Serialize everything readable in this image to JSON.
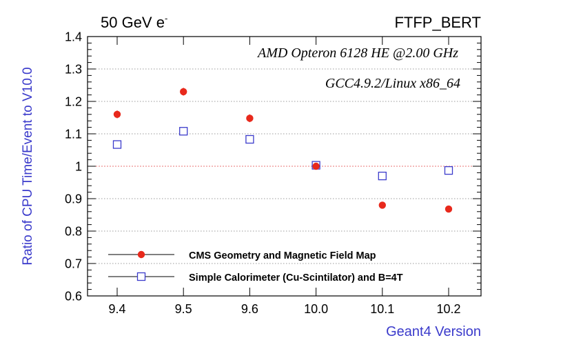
{
  "chart_data": {
    "type": "scatter",
    "title_left": "50 GeV e",
    "title_left_sup": "-",
    "title_right": "FTFP_BERT",
    "annotations": [
      "AMD Opteron 6128 HE @2.00 GHz",
      "GCC4.9.2/Linux x86_64"
    ],
    "xlabel": "Geant4 Version",
    "ylabel": "Ratio of CPU Time/Event to V10.0",
    "categories": [
      "9.4",
      "9.5",
      "9.6",
      "10.0",
      "10.1",
      "10.2"
    ],
    "yticks": [
      "0.6",
      "0.7",
      "0.8",
      "0.9",
      "1",
      "1.1",
      "1.2",
      "1.3",
      "1.4"
    ],
    "ylim": [
      0.6,
      1.4
    ],
    "reference_line": 1.0,
    "grid": "horizontal dotted",
    "legend_position": "bottom-left",
    "series": [
      {
        "name": "CMS Geometry and Magnetic Field Map",
        "marker": "filled-circle",
        "color": "#e8291c",
        "values": [
          1.16,
          1.23,
          1.148,
          1.0,
          0.88,
          0.868
        ],
        "errors": [
          0.012,
          0.012,
          0.012,
          0.008,
          0.006,
          0.006
        ]
      },
      {
        "name": "Simple Calorimeter (Cu-Scintilator) and B=4T",
        "marker": "open-square",
        "color": "#3a3acb",
        "values": [
          1.067,
          1.108,
          1.083,
          1.003,
          0.97,
          0.987
        ],
        "errors": [
          0.005,
          0.005,
          0.005,
          0.005,
          0.005,
          0.005
        ]
      }
    ]
  }
}
